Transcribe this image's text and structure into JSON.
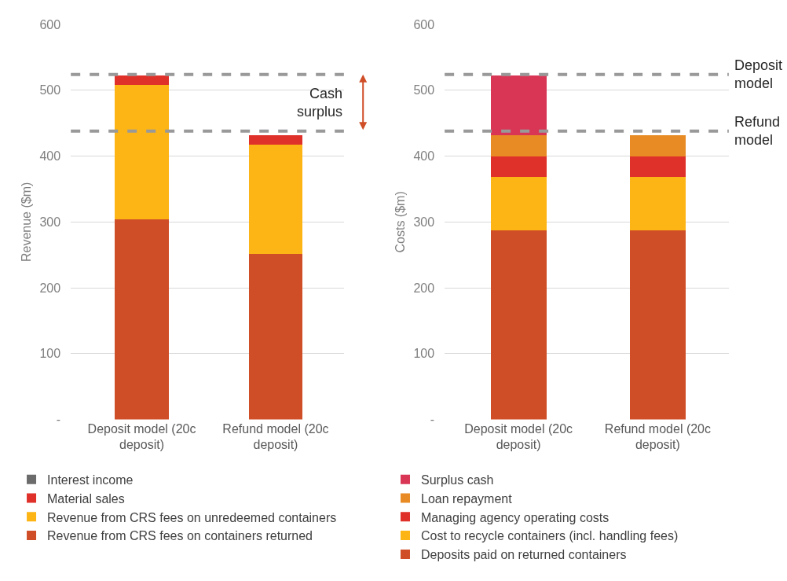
{
  "chart_data": [
    {
      "type": "bar",
      "stacked": true,
      "ylabel": "Revenue ($m)",
      "categories": [
        "Deposit model (20c deposit)",
        "Refund model (20c deposit)"
      ],
      "series": [
        {
          "name": "Revenue from CRS fees on containers returned",
          "color": "#cf4e27",
          "values": [
            304,
            251
          ]
        },
        {
          "name": "Revenue from CRS fees on unredeemed containers",
          "color": "#fdb515",
          "values": [
            204,
            167
          ]
        },
        {
          "name": "Material sales",
          "color": "#e0302a",
          "values": [
            14,
            14
          ]
        },
        {
          "name": "Interest income",
          "color": "#6b6b6b",
          "values": [
            0,
            0
          ]
        }
      ],
      "ylim": [
        0,
        600
      ],
      "yticks": [
        {
          "value": 0,
          "label": "-"
        },
        100,
        200,
        300,
        400,
        500,
        600
      ],
      "grid": "y",
      "legend": "bottom",
      "ref_lines": [
        {
          "axis": "y",
          "value": 524,
          "color": "#999999",
          "line_style": "dashed"
        },
        {
          "axis": "y",
          "value": 438,
          "color": "#999999",
          "line_style": "dashed"
        }
      ],
      "annotations": [
        "Cash surplus"
      ]
    },
    {
      "type": "bar",
      "stacked": true,
      "ylabel": "Costs ($m)",
      "categories": [
        "Deposit model (20c deposit)",
        "Refund model (20c deposit)"
      ],
      "series": [
        {
          "name": "Deposits paid on returned containers",
          "color": "#cf4e27",
          "values": [
            287,
            287
          ]
        },
        {
          "name": "Cost to recycle containers (incl. handling fees)",
          "color": "#fdb515",
          "values": [
            81,
            81
          ]
        },
        {
          "name": "Managing agency operating costs",
          "color": "#e0302a",
          "values": [
            32,
            32
          ]
        },
        {
          "name": "Loan repayment",
          "color": "#e88b25",
          "values": [
            32,
            32
          ]
        },
        {
          "name": "Surplus cash",
          "color": "#d93655",
          "values": [
            90,
            null
          ]
        }
      ],
      "ylim": [
        0,
        600
      ],
      "yticks": [
        {
          "value": 0,
          "label": "-"
        },
        100,
        200,
        300,
        400,
        500,
        600
      ],
      "grid": "y",
      "legend": "bottom",
      "ref_lines": [
        {
          "axis": "y",
          "value": 524,
          "label": "Deposit model",
          "color": "#999999",
          "line_style": "dashed"
        },
        {
          "axis": "y",
          "value": 438,
          "label": "Refund model",
          "color": "#999999",
          "line_style": "dashed"
        }
      ]
    }
  ]
}
